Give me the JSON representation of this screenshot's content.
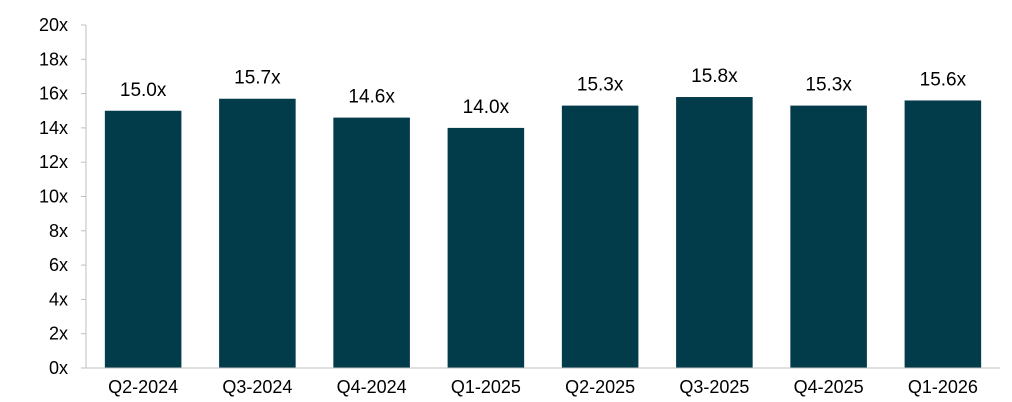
{
  "chart_data": {
    "type": "bar",
    "categories": [
      "Q2-2024",
      "Q3-2024",
      "Q4-2024",
      "Q1-2025",
      "Q2-2025",
      "Q3-2025",
      "Q4-2025",
      "Q1-2026"
    ],
    "values": [
      15.0,
      15.7,
      14.6,
      14.0,
      15.3,
      15.8,
      15.3,
      15.6
    ],
    "data_labels": [
      "15.0x",
      "15.7x",
      "14.6x",
      "14.0x",
      "15.3x",
      "15.8x",
      "15.3x",
      "15.6x"
    ],
    "yticks": [
      0,
      2,
      4,
      6,
      8,
      10,
      12,
      14,
      16,
      18,
      20
    ],
    "ytick_labels": [
      "0x",
      "2x",
      "4x",
      "6x",
      "8x",
      "10x",
      "12x",
      "14x",
      "16x",
      "18x",
      "20x"
    ],
    "ylim": [
      0,
      20
    ],
    "grid": false,
    "title": "",
    "xlabel": "",
    "ylabel": "",
    "bar_color": "#023b4a",
    "axis_color": "#bfbfbf"
  }
}
